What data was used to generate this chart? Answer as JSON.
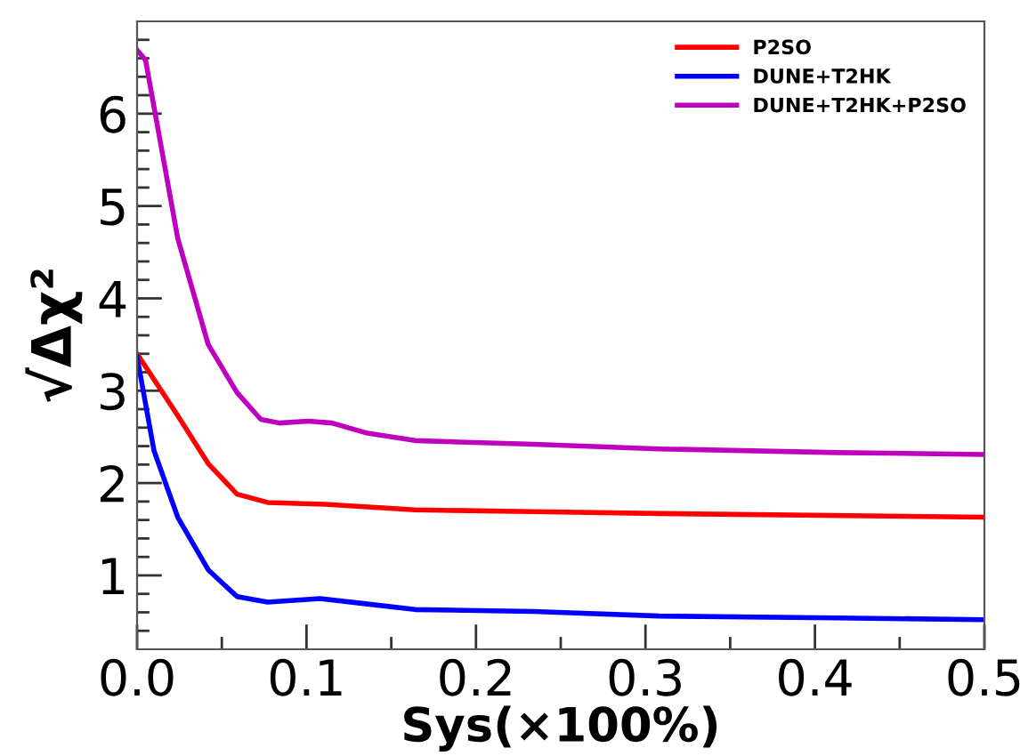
{
  "chart_data": {
    "type": "line",
    "xlabel": "Sys(×100%)",
    "ylabel": "√Δχ²",
    "xlim": [
      0,
      0.5
    ],
    "ylim": [
      0.2,
      7.0
    ],
    "xticks": [
      {
        "value": 0,
        "label": "0.0"
      },
      0.1,
      0.2,
      0.3,
      0.4,
      0.5,
      {
        "value": 0.05,
        "label": null
      },
      {
        "value": 0.15,
        "label": null
      },
      {
        "value": 0.25,
        "label": null
      },
      {
        "value": 0.35,
        "label": null
      },
      {
        "value": 0.45,
        "label": null
      }
    ],
    "yticks": [
      1,
      2,
      3,
      4,
      5,
      6,
      {
        "value": 0.4,
        "label": null
      },
      {
        "value": 0.6,
        "label": null
      },
      {
        "value": 0.8,
        "label": null
      },
      {
        "value": 1.2,
        "label": null
      },
      {
        "value": 1.4,
        "label": null
      },
      {
        "value": 1.6,
        "label": null
      },
      {
        "value": 1.8,
        "label": null
      },
      {
        "value": 2.2,
        "label": null
      },
      {
        "value": 2.4,
        "label": null
      },
      {
        "value": 2.6,
        "label": null
      },
      {
        "value": 2.8,
        "label": null
      },
      {
        "value": 3.2,
        "label": null
      },
      {
        "value": 3.4,
        "label": null
      },
      {
        "value": 3.6,
        "label": null
      },
      {
        "value": 3.8,
        "label": null
      },
      {
        "value": 4.2,
        "label": null
      },
      {
        "value": 4.4,
        "label": null
      },
      {
        "value": 4.6,
        "label": null
      },
      {
        "value": 4.8,
        "label": null
      },
      {
        "value": 5.2,
        "label": null
      },
      {
        "value": 5.4,
        "label": null
      },
      {
        "value": 5.6,
        "label": null
      },
      {
        "value": 5.8,
        "label": null
      },
      {
        "value": 6.2,
        "label": null
      },
      {
        "value": 6.4,
        "label": null
      },
      {
        "value": 6.6,
        "label": null
      },
      {
        "value": 6.8,
        "label": null
      }
    ],
    "grid": false,
    "legend": "top right",
    "marker": "none",
    "line_style": "solid",
    "series": [
      {
        "name": "P2SO",
        "color": "#ff0000",
        "x": [
          0,
          0.024,
          0.042,
          0.059,
          0.077,
          0.111,
          0.164,
          0.234,
          0.308,
          0.5
        ],
        "values": [
          3.4,
          2.73,
          2.21,
          1.88,
          1.79,
          1.77,
          1.71,
          1.69,
          1.67,
          1.63
        ]
      },
      {
        "name": "DUNE+T2HK",
        "color": "#0000ff",
        "x": [
          0,
          0.01,
          0.024,
          0.042,
          0.059,
          0.077,
          0.108,
          0.136,
          0.164,
          0.234,
          0.308,
          0.413,
          0.5
        ],
        "values": [
          3.37,
          2.35,
          1.63,
          1.06,
          0.77,
          0.71,
          0.75,
          0.69,
          0.63,
          0.61,
          0.56,
          0.54,
          0.52
        ]
      },
      {
        "name": "DUNE+T2HK+P2SO",
        "color": "#bf00bf",
        "x": [
          0,
          0.005,
          0.024,
          0.042,
          0.059,
          0.073,
          0.084,
          0.101,
          0.115,
          0.136,
          0.164,
          0.234,
          0.308,
          0.413,
          0.5
        ],
        "values": [
          6.69,
          6.58,
          4.65,
          3.5,
          2.98,
          2.69,
          2.65,
          2.67,
          2.65,
          2.54,
          2.46,
          2.42,
          2.37,
          2.33,
          2.31
        ]
      }
    ]
  }
}
